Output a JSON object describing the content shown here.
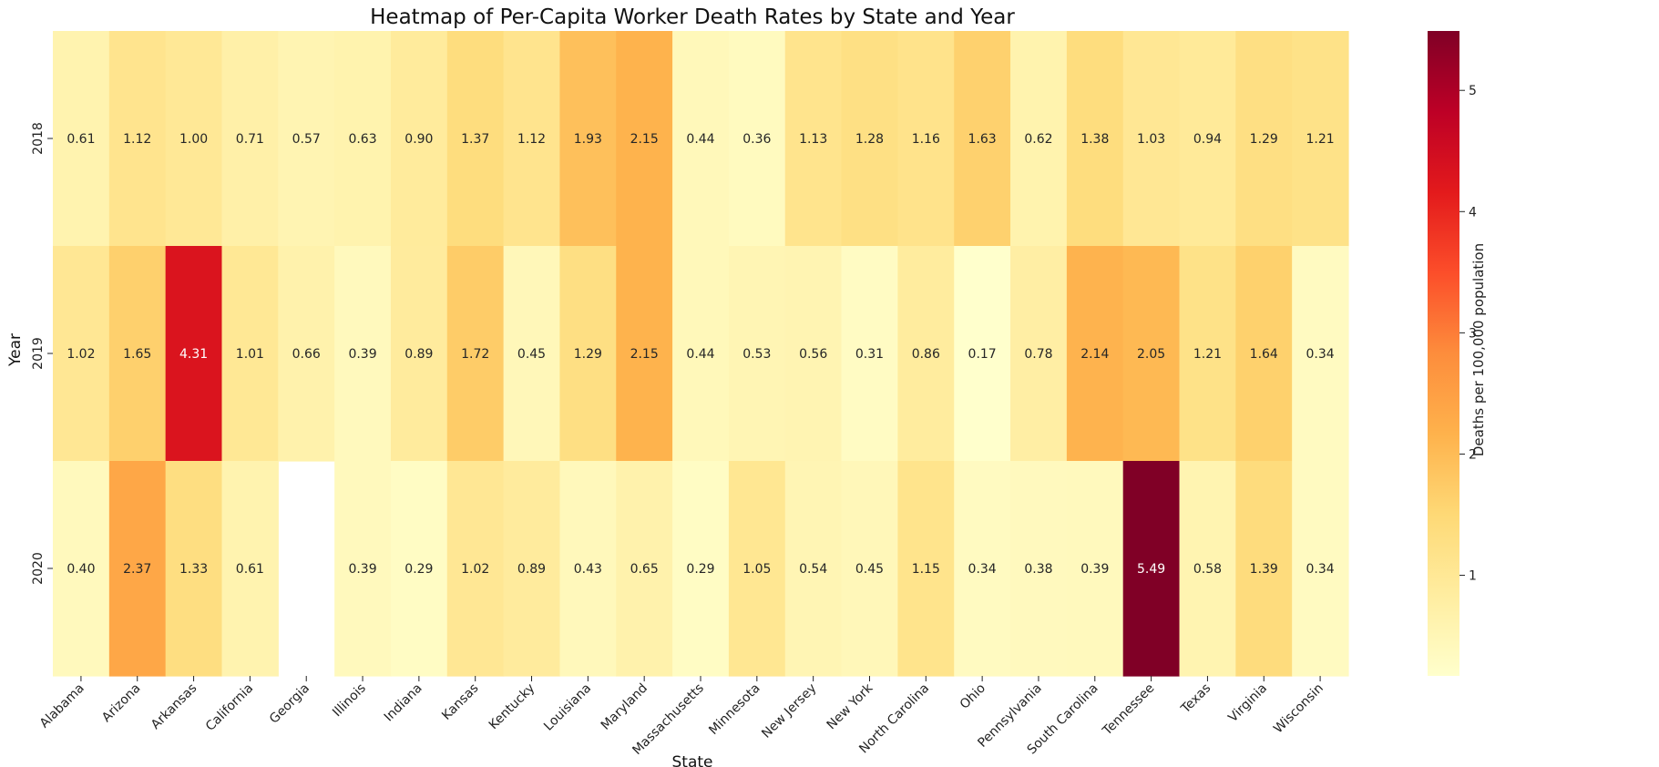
{
  "chart_data": {
    "type": "heatmap",
    "title": "Heatmap of Per-Capita Worker Death Rates by State and Year",
    "xlabel": "State",
    "ylabel": "Year",
    "x_categories": [
      "Alabama",
      "Arizona",
      "Arkansas",
      "California",
      "Georgia",
      "Illinois",
      "Indiana",
      "Kansas",
      "Kentucky",
      "Louisiana",
      "Maryland",
      "Massachusetts",
      "Minnesota",
      "New Jersey",
      "New York",
      "North Carolina",
      "Ohio",
      "Pennsylvania",
      "South Carolina",
      "Tennessee",
      "Texas",
      "Virginia",
      "Wisconsin"
    ],
    "y_categories": [
      "2018",
      "2019",
      "2020"
    ],
    "values": [
      [
        0.61,
        1.12,
        1.0,
        0.71,
        0.57,
        0.63,
        0.9,
        1.37,
        1.12,
        1.93,
        2.15,
        0.44,
        0.36,
        1.13,
        1.28,
        1.16,
        1.63,
        0.62,
        1.38,
        1.03,
        0.94,
        1.29,
        1.21
      ],
      [
        1.02,
        1.65,
        4.31,
        1.01,
        0.66,
        0.39,
        0.89,
        1.72,
        0.45,
        1.29,
        2.15,
        0.44,
        0.53,
        0.56,
        0.31,
        0.86,
        0.17,
        0.78,
        2.14,
        2.05,
        1.21,
        1.64,
        0.34
      ],
      [
        0.4,
        2.37,
        1.33,
        0.61,
        null,
        0.39,
        0.29,
        1.02,
        0.89,
        0.43,
        0.65,
        0.29,
        1.05,
        0.54,
        0.45,
        1.15,
        0.34,
        0.38,
        0.39,
        5.49,
        0.58,
        1.39,
        0.34
      ]
    ],
    "value_format": "0.00",
    "colormap": "YlOrRd",
    "colorbar": {
      "label": "Deaths per 100,000 population",
      "range": [
        0.17,
        5.49
      ],
      "ticks": [
        1,
        2,
        3,
        4,
        5
      ],
      "tick_labels": [
        "1",
        "2",
        "3",
        "4",
        "5"
      ]
    },
    "colors": {
      "text_dark": "#262626",
      "text_light": "#ffffff",
      "axis": "#222222"
    }
  }
}
